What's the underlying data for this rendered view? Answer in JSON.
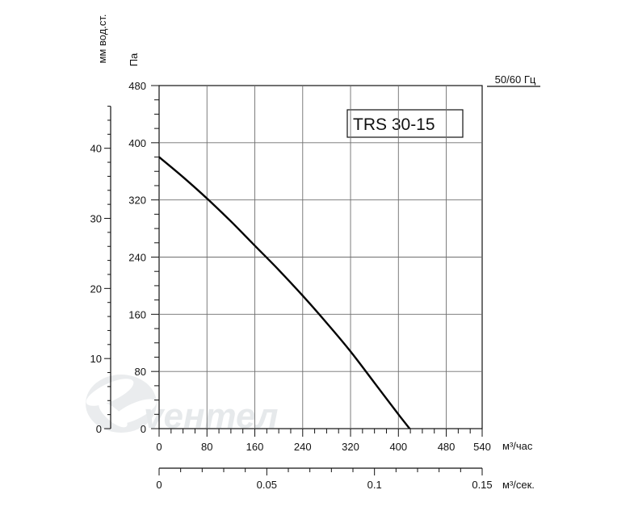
{
  "chart_data": {
    "type": "line",
    "title": "",
    "model_label": "TRS 30-15",
    "frequency_label": "50/60 Гц",
    "x_unit_primary": "м³/час",
    "x_unit_secondary": "м³/сек.",
    "y_unit_primary": "Па",
    "y_unit_secondary": "мм вод.ст.",
    "xlim": [
      0,
      540
    ],
    "ylim": [
      0,
      480
    ],
    "x_ticks": [
      0,
      80,
      160,
      240,
      320,
      400,
      480,
      540
    ],
    "y_ticks": [
      0,
      80,
      160,
      240,
      320,
      400,
      480
    ],
    "x2_ticks": [
      0,
      0.05,
      0.1,
      0.15
    ],
    "y2_ticks": [
      0,
      10,
      20,
      30,
      40
    ],
    "grid": true,
    "series": [
      {
        "x": [
          0,
          40,
          80,
          120,
          160,
          200,
          240,
          280,
          320,
          360,
          400,
          430,
          445
        ],
        "y": [
          380,
          352,
          322,
          290,
          256,
          222,
          186,
          148,
          108,
          64,
          20,
          -12,
          -30
        ]
      }
    ],
    "watermark": "vентел"
  }
}
